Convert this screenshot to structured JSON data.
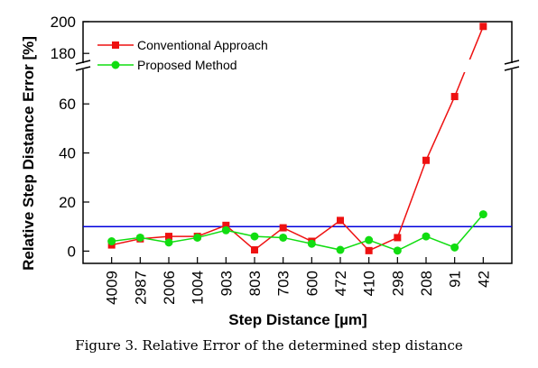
{
  "chart_data": {
    "type": "line",
    "categories": [
      "4009",
      "2987",
      "2006",
      "1004",
      "903",
      "803",
      "703",
      "600",
      "472",
      "410",
      "298",
      "208",
      "91",
      "42"
    ],
    "xlabel": "Step Distance [µm]",
    "ylabel": "Relative Step Distance Error [%]",
    "y_ticks_lower": [
      "0",
      "20",
      "40",
      "60"
    ],
    "y_ticks_upper": [
      "180",
      "200"
    ],
    "ylim_lower": [
      -5,
      70
    ],
    "ylim_upper": [
      175,
      200
    ],
    "axis_break": true,
    "series": [
      {
        "name": "Conventional Approach",
        "color": "#ee1111",
        "marker": "square",
        "values": [
          2.5,
          5,
          6,
          6,
          10.5,
          0.5,
          9.5,
          4,
          12.5,
          0.2,
          5.5,
          37,
          63,
          197
        ]
      },
      {
        "name": "Proposed Method",
        "color": "#11dd11",
        "marker": "circle",
        "values": [
          4,
          5.5,
          3.5,
          5.5,
          8.5,
          6,
          5.5,
          3,
          0.5,
          4.5,
          0.2,
          6,
          1.5,
          15
        ]
      }
    ],
    "threshold": {
      "value": 10,
      "color": "#0000dd"
    },
    "legend_position": "top-left"
  },
  "caption": "Figure 3. Relative Error of the determined step distance"
}
